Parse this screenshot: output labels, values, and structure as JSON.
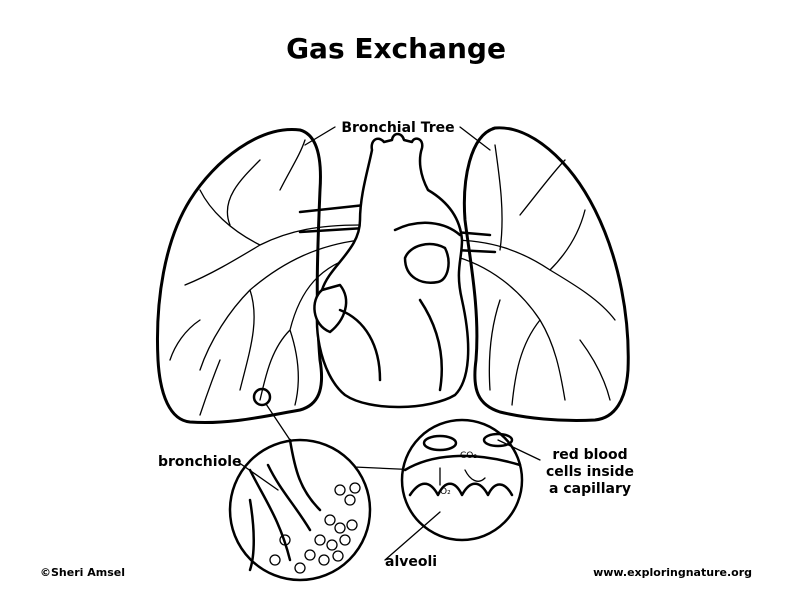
{
  "title": "Gas Exchange",
  "labels": {
    "bronchial_tree": "Bronchial Tree",
    "bronchiole": "bronchiole",
    "capillary": [
      "red blood",
      "cells inside",
      "a capillary"
    ],
    "alveoli": "alveoli",
    "co2": "CO₂",
    "o2": "O₂"
  },
  "footer": {
    "credit": "©Sheri Amsel",
    "website": "www.exploringnature.org"
  }
}
